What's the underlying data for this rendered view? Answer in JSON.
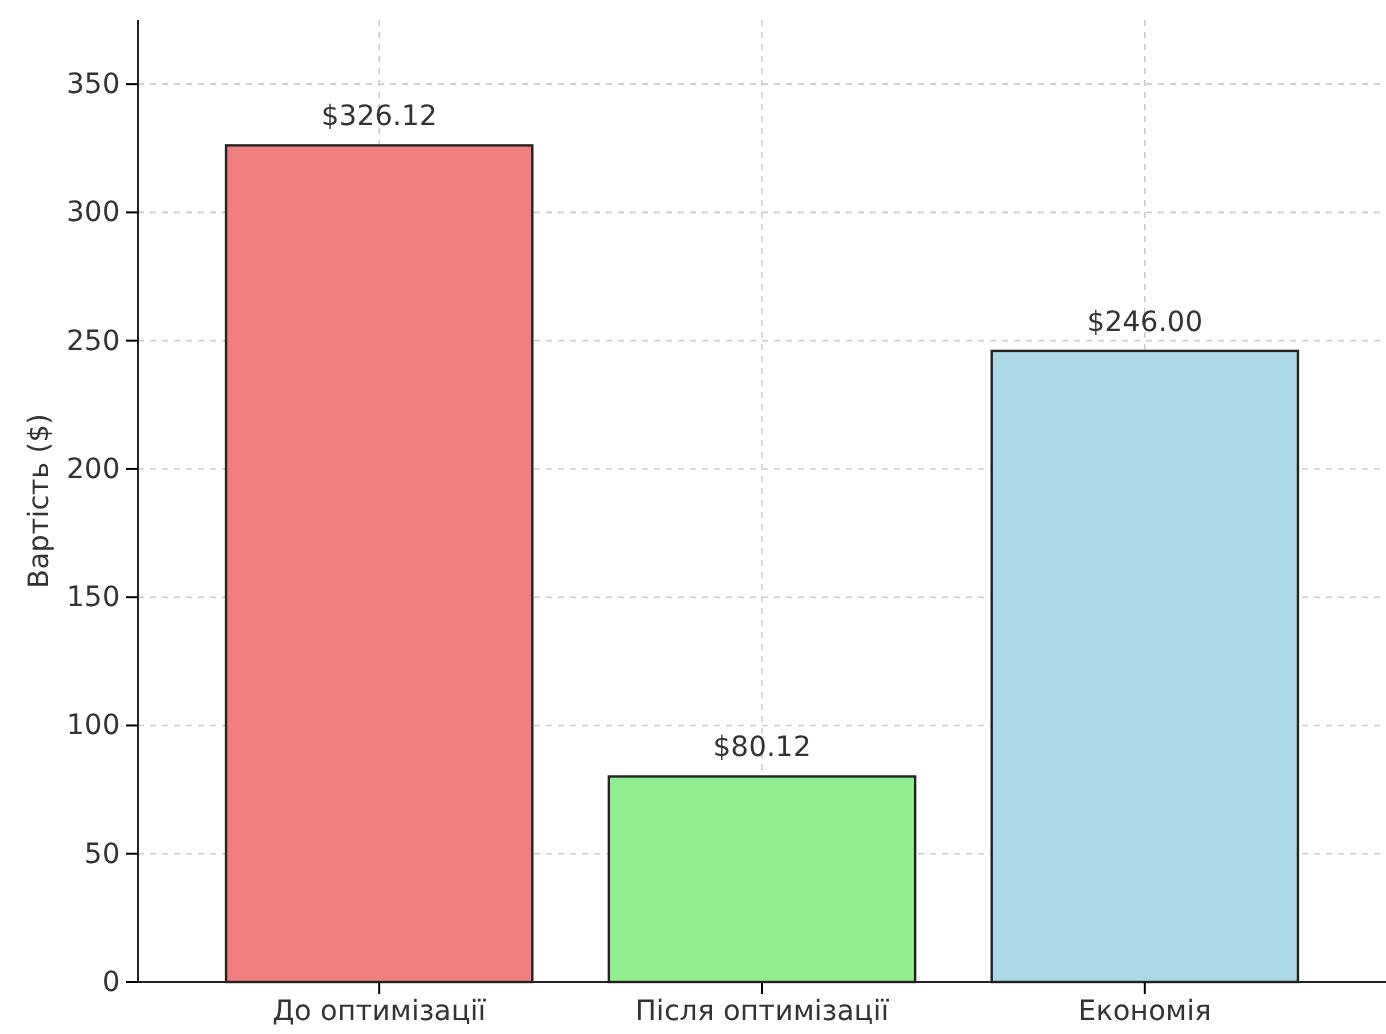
{
  "chart_data": {
    "type": "bar",
    "ylabel": "Вартість ($)",
    "categories": [
      "До оптимізації",
      "Після оптимізації",
      "Економія"
    ],
    "values": [
      326.12,
      80.12,
      246.0
    ],
    "colors": [
      "#f08080",
      "#90ee90",
      "#add8e6"
    ],
    "value_labels": [
      "$326.12",
      "$80.12",
      "$246.00"
    ],
    "ylim": [
      0,
      375
    ],
    "yticks": [
      0,
      50,
      100,
      150,
      200,
      250,
      300,
      350
    ],
    "grid": true
  }
}
